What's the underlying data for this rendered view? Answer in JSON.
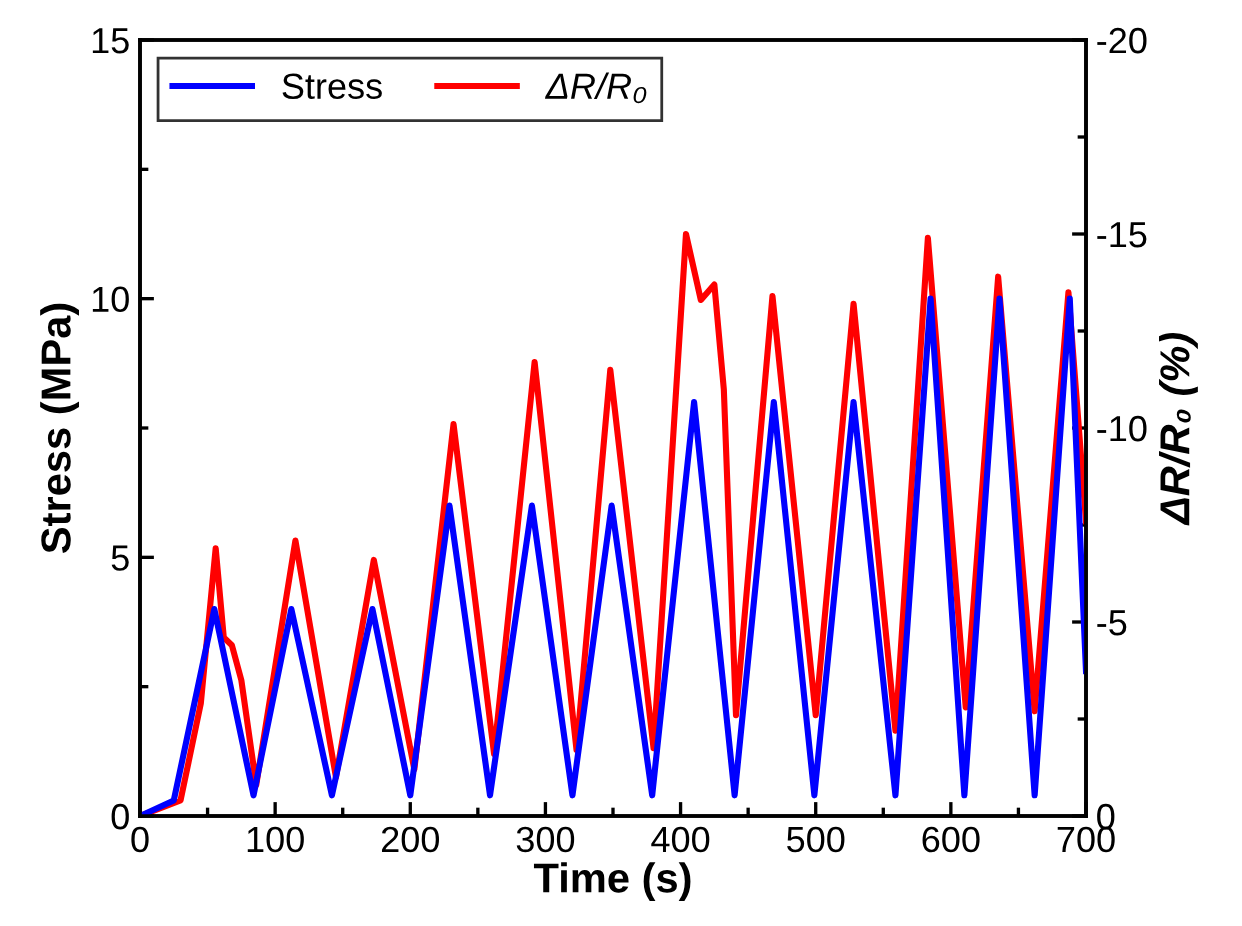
{
  "chart_data": {
    "type": "line",
    "xlabel": "Time (s)",
    "ylabel": "Stress (MPa)",
    "y2label": "ΔR/R₀ (%)",
    "xlim": [
      0,
      700
    ],
    "xticks": [
      0,
      100,
      200,
      300,
      400,
      500,
      600,
      700
    ],
    "ylim": [
      0,
      15
    ],
    "yticks": [
      0,
      5,
      10,
      15
    ],
    "y2lim": [
      0,
      -20
    ],
    "y2ticks": [
      0,
      {
        "value": -5,
        "label": "-5"
      },
      {
        "value": -10,
        "label": "-10"
      },
      {
        "value": -15,
        "label": "-15"
      },
      {
        "value": -20,
        "label": "-20"
      }
    ],
    "grid": false,
    "legend": "top left",
    "marker": "none",
    "line_style": "solid",
    "series": [
      {
        "name": "Stress",
        "color": "#0000ff",
        "x": [
          0,
          25,
          55,
          84,
          112,
          142,
          172,
          200,
          229,
          259,
          290,
          320,
          349,
          379,
          410,
          440,
          469,
          499,
          528,
          559,
          585,
          610,
          636,
          662,
          688,
          700
        ],
        "values": [
          0,
          0.3,
          4.0,
          0.4,
          4.0,
          0.4,
          4.0,
          0.4,
          6.0,
          0.4,
          6.0,
          0.4,
          6.0,
          0.4,
          8.0,
          0.4,
          8.0,
          0.4,
          8.0,
          0.4,
          10.0,
          0.4,
          10.0,
          0.4,
          10.0,
          2.8
        ]
      },
      {
        "name": "ΔR/R₀",
        "color": "#ff0000",
        "axis": "y2",
        "x": [
          0,
          30,
          45,
          56,
          62,
          68,
          75,
          86,
          115,
          145,
          173,
          203,
          232,
          262,
          292,
          323,
          348,
          380,
          404,
          415,
          425,
          432,
          441,
          468,
          500,
          528,
          559,
          583,
          611,
          635,
          662,
          687,
          700
        ],
        "values": [
          0,
          -0.4,
          -2.9,
          -6.9,
          -4.6,
          -4.4,
          -3.5,
          -0.8,
          -7.1,
          -1.0,
          -6.6,
          -1.2,
          -10.1,
          -1.6,
          -11.7,
          -1.7,
          -11.5,
          -1.75,
          -15.0,
          -13.3,
          -13.7,
          -11.0,
          -2.6,
          -13.4,
          -2.6,
          -13.2,
          -2.2,
          -14.9,
          -2.8,
          -13.9,
          -2.7,
          -13.5,
          -7.6
        ]
      }
    ]
  }
}
